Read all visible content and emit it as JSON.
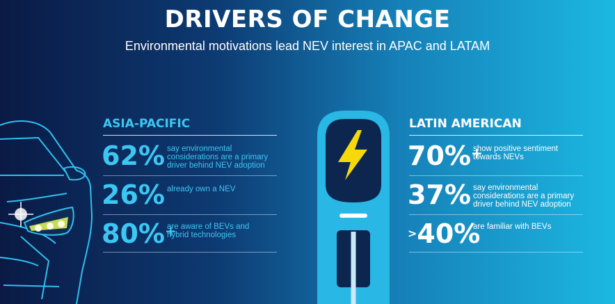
{
  "header": {
    "title": "DRIVERS OF CHANGE",
    "subtitle": "Environmental motivations lead NEV interest in APAC and LATAM"
  },
  "asia_pacific": {
    "heading": "ASIA-PACIFIC",
    "stats": [
      {
        "value": "62%",
        "suffix": "",
        "prefix": "",
        "lines": [
          "say environmental",
          "considerations are a primary",
          "driver behind NEV adoption"
        ]
      },
      {
        "value": "26%",
        "suffix": "",
        "prefix": "",
        "lines": [
          "already own a NEV"
        ]
      },
      {
        "value": "80%",
        "suffix": "+",
        "prefix": "",
        "lines": [
          "are aware of BEVs and",
          "hybrid technologies"
        ]
      }
    ]
  },
  "latin_america": {
    "heading": "LATIN AMERICAN",
    "stats": [
      {
        "value": "70%",
        "suffix": "+",
        "prefix": "",
        "lines": [
          "show positive sentiment",
          "towards NEVs"
        ]
      },
      {
        "value": "37%",
        "suffix": "",
        "prefix": "",
        "lines": [
          "say environmental",
          "considerations are a primary",
          "driver behind NEV adoption"
        ]
      },
      {
        "value": "40%",
        "suffix": "",
        "prefix": ">",
        "lines": [
          "are familiar with BEVs"
        ]
      }
    ]
  },
  "colors": {
    "background_dark": "#0a1a45",
    "background_light": "#1cb8e2",
    "accent_cyan": "#3ec6f2",
    "charger_body": "#29b7e6",
    "bolt_yellow": "#f5d90a"
  },
  "icons": [
    "car-illustration",
    "ev-charger-illustration",
    "lightning-bolt-icon"
  ]
}
